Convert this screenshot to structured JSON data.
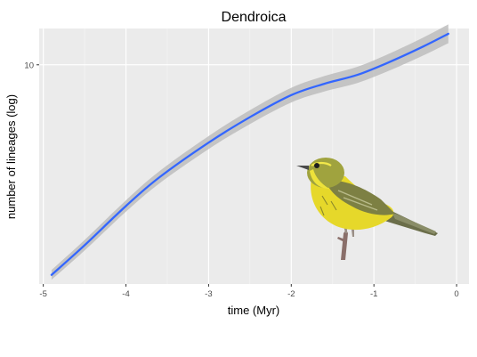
{
  "chart_data": {
    "type": "line",
    "title": "Dendroica",
    "xlabel": "time (Myr)",
    "ylabel": "number of lineages (log)",
    "xlim": [
      -5.05,
      0.15
    ],
    "ylim_log": [
      2.6,
      12.5
    ],
    "x_ticks": [
      -5,
      -4,
      -3,
      -2,
      -1,
      0
    ],
    "x_tick_labels": [
      "-5",
      "-4",
      "-3",
      "-2",
      "-1",
      "0"
    ],
    "y_ticks": [
      10
    ],
    "y_tick_labels": [
      "10"
    ],
    "series": [
      {
        "name": "lineages",
        "x": [
          -4.9,
          -4.5,
          -4.0,
          -3.6,
          -3.0,
          -2.5,
          -2.0,
          -1.6,
          -1.2,
          -0.8,
          -0.4,
          -0.1
        ],
        "y": [
          2.75,
          3.3,
          4.2,
          5.0,
          6.2,
          7.25,
          8.3,
          8.9,
          9.4,
          10.2,
          11.2,
          12.1
        ],
        "band_halfwidth_log": 0.03
      }
    ],
    "image": "warbler-bird",
    "colors": {
      "line": "#3366ff",
      "band": "#bdbdbd",
      "panel": "#ebebeb",
      "grid_major": "#ffffff"
    }
  }
}
